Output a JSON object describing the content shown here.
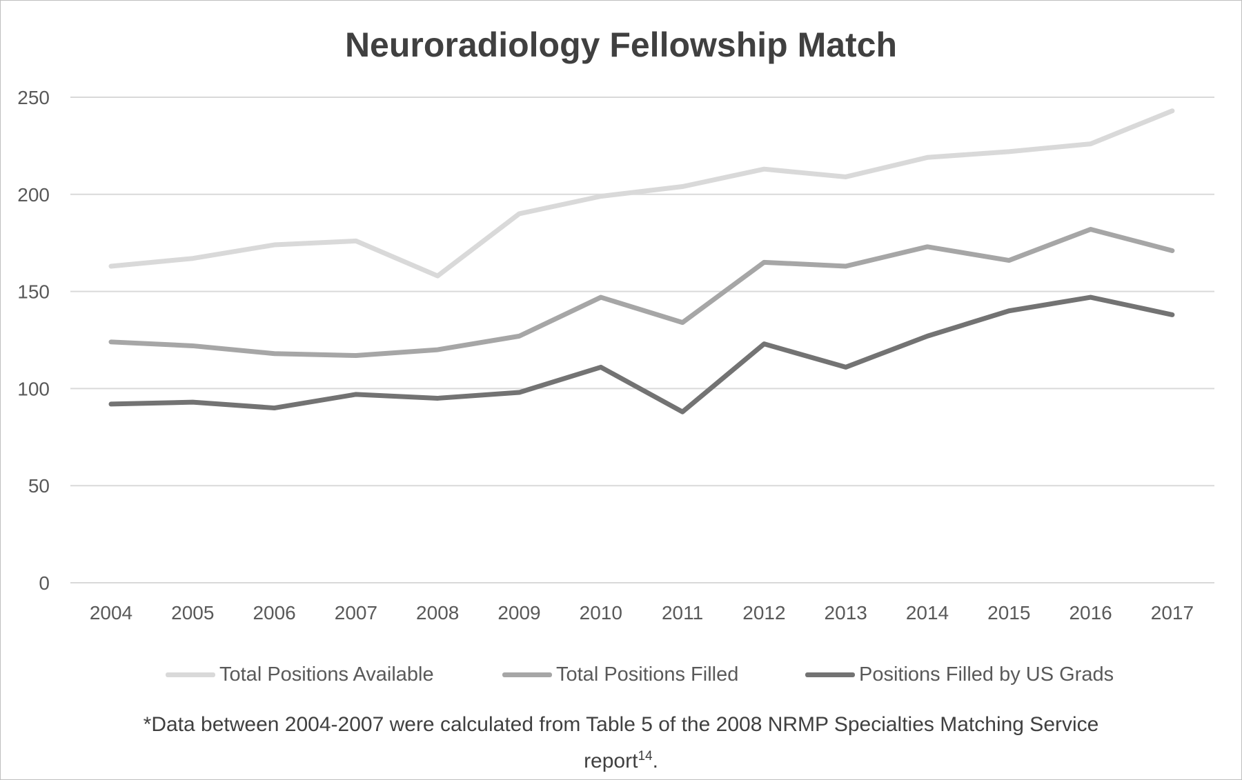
{
  "chart_data": {
    "type": "line",
    "title": "Neuroradiology Fellowship Match",
    "xlabel": "",
    "ylabel": "",
    "categories": [
      "2004",
      "2005",
      "2006",
      "2007",
      "2008",
      "2009",
      "2010",
      "2011",
      "2012",
      "2013",
      "2014",
      "2015",
      "2016",
      "2017"
    ],
    "ylim": [
      0,
      250
    ],
    "yticks": [
      0,
      50,
      100,
      150,
      200,
      250
    ],
    "grid": true,
    "legend_position": "bottom",
    "series": [
      {
        "name": "Total Positions Available",
        "color": "#d9d9d9",
        "values": [
          163,
          167,
          174,
          176,
          158,
          190,
          199,
          204,
          213,
          209,
          219,
          222,
          226,
          243
        ]
      },
      {
        "name": "Total Positions Filled",
        "color": "#a6a6a6",
        "values": [
          124,
          122,
          118,
          117,
          120,
          127,
          147,
          134,
          165,
          163,
          173,
          166,
          182,
          171
        ]
      },
      {
        "name": "Positions Filled by US Grads",
        "color": "#737373",
        "values": [
          92,
          93,
          90,
          97,
          95,
          98,
          111,
          88,
          123,
          111,
          127,
          140,
          147,
          138
        ]
      }
    ]
  },
  "footnote": {
    "text": "*Data between 2004-2007 were calculated from Table 5 of the 2008 NRMP Specialties Matching Service report",
    "superscript": "14",
    "suffix": "."
  }
}
